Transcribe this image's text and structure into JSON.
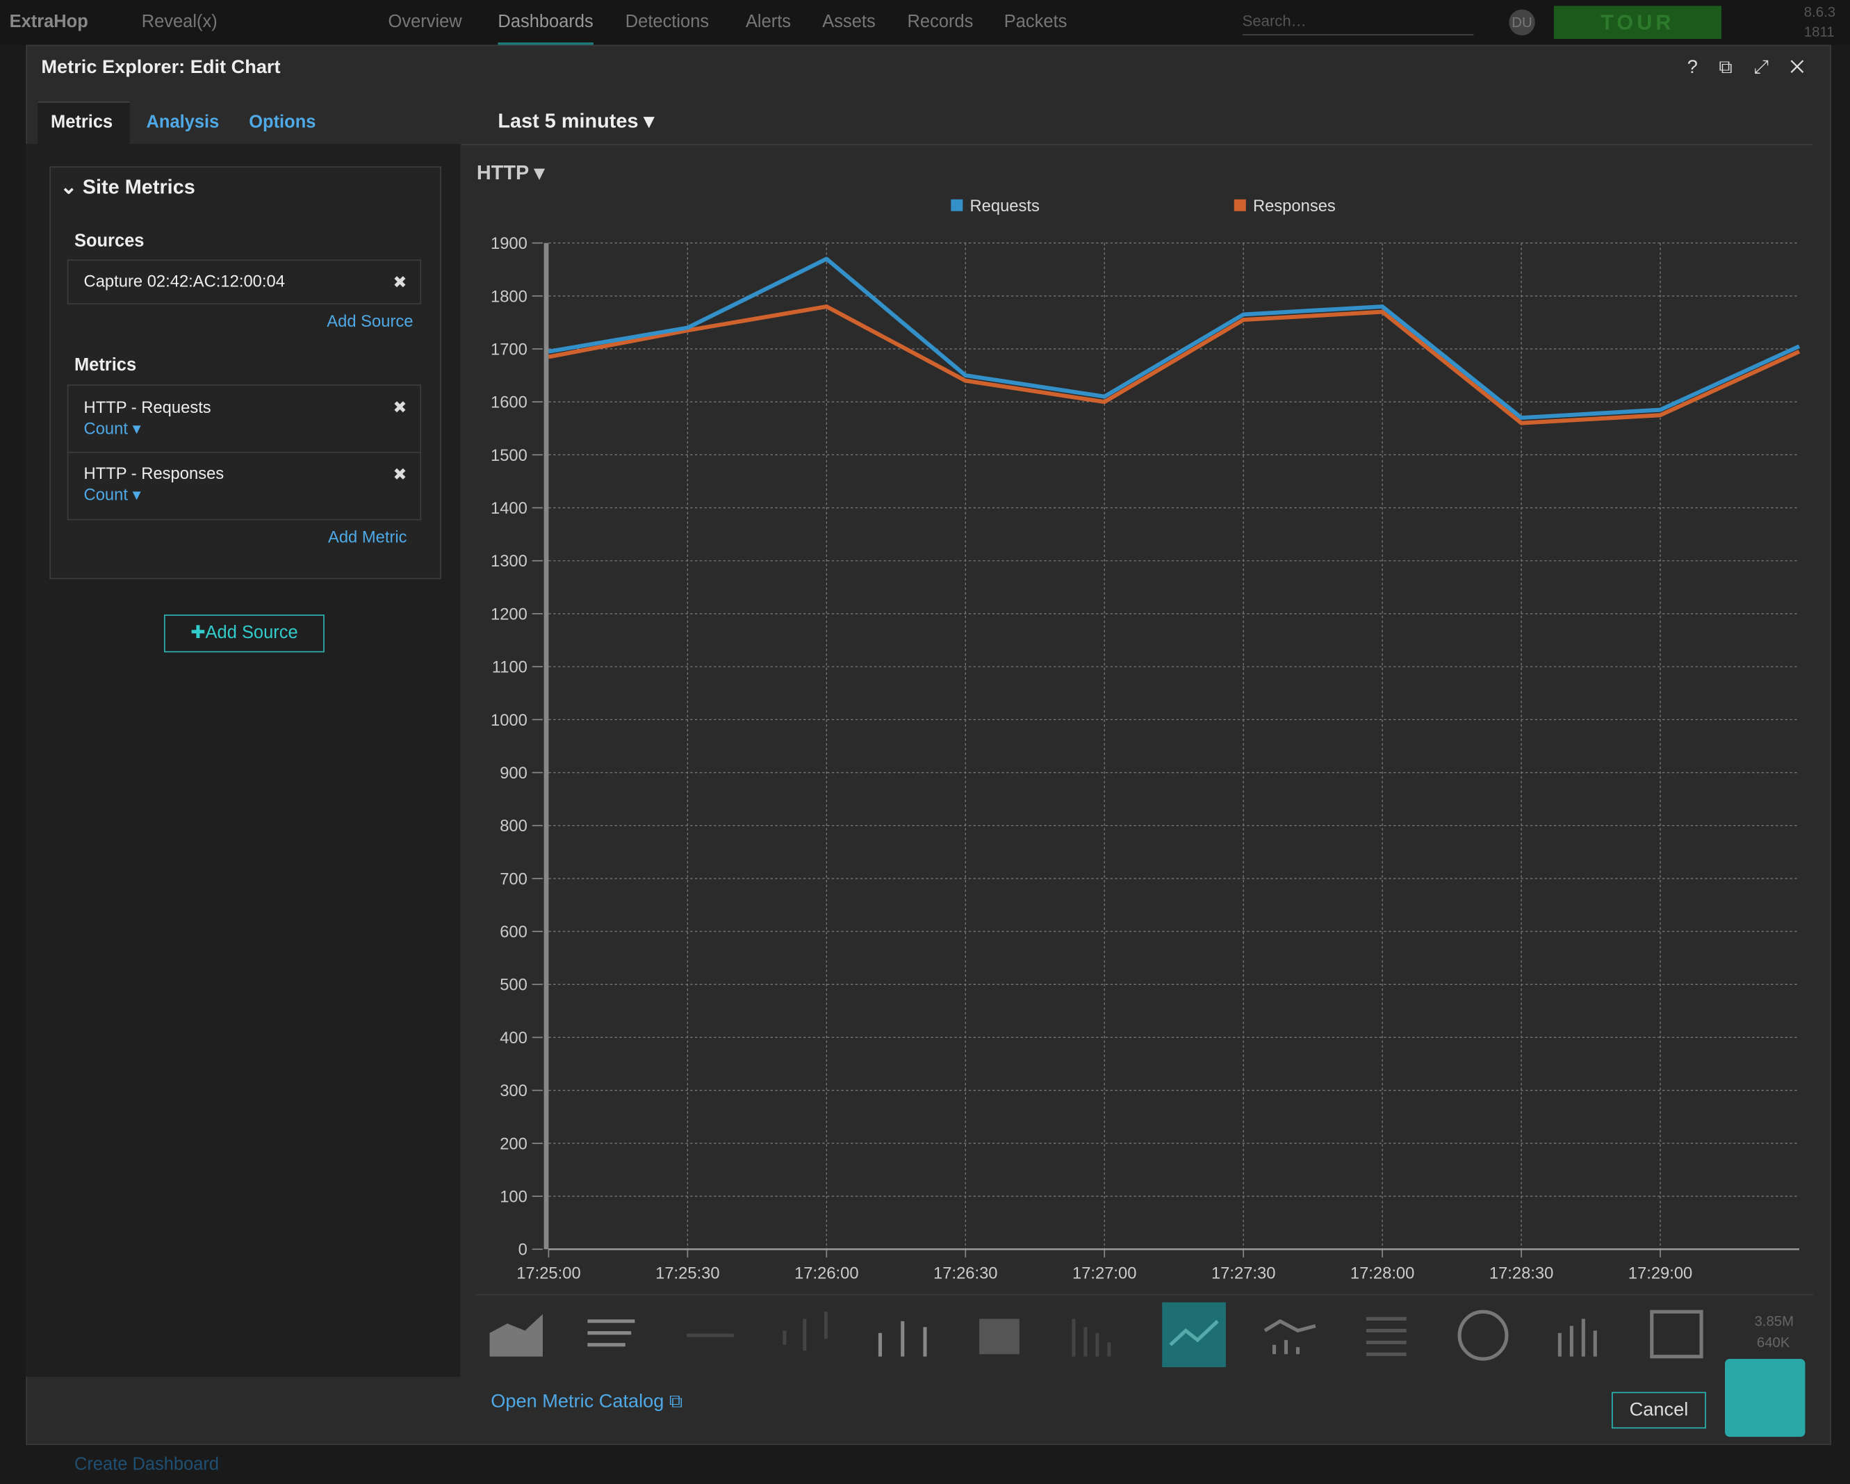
{
  "nav": {
    "brand": "ExtraHop",
    "product": "Reveal(x)",
    "items": [
      "Overview",
      "Dashboards",
      "Detections",
      "Alerts",
      "Assets",
      "Records",
      "Packets"
    ],
    "search": "Search…",
    "user": "DU",
    "tour": "TOUR",
    "version": "8.6.3",
    "build": "1811"
  },
  "modal": {
    "title": "Metric Explorer: Edit Chart",
    "tabs": [
      "Metrics",
      "Analysis",
      "Options"
    ],
    "section": "Site Metrics",
    "sources_label": "Sources",
    "source": "Capture 02:42:AC:12:00:04",
    "add_source": "Add Source",
    "metrics_label": "Metrics",
    "metrics": [
      {
        "name": "HTTP - Requests",
        "calc": "Count"
      },
      {
        "name": "HTTP - Responses",
        "calc": "Count"
      }
    ],
    "add_metric": "Add Metric",
    "add_source_button": "Add Source",
    "time_range": "Last 5 minutes",
    "group": "HTTP",
    "mini_values": [
      "3.85M",
      "640K"
    ],
    "catalog_link": "Open Metric Catalog",
    "cancel": "Cancel"
  },
  "background": {
    "create_dashboard": "Create Dashboard"
  },
  "chart_data": {
    "type": "line",
    "categories": [
      "17:25:00",
      "17:25:30",
      "17:26:00",
      "17:26:30",
      "17:27:00",
      "17:27:30",
      "17:28:00",
      "17:28:30",
      "17:29:00",
      null
    ],
    "series": [
      {
        "name": "Requests",
        "color": "#3490c8",
        "values": [
          1695,
          1740,
          1870,
          1650,
          1610,
          1765,
          1780,
          1570,
          1585,
          1705
        ]
      },
      {
        "name": "Responses",
        "color": "#d0622e",
        "values": [
          1685,
          1735,
          1780,
          1640,
          1600,
          1755,
          1770,
          1560,
          1575,
          1695
        ]
      }
    ],
    "ylim": [
      0,
      1900
    ],
    "yticks": [
      0,
      100,
      200,
      300,
      400,
      500,
      600,
      700,
      800,
      900,
      1000,
      1100,
      1200,
      1300,
      1400,
      1500,
      1600,
      1700,
      1800,
      1900
    ],
    "grid": true
  }
}
